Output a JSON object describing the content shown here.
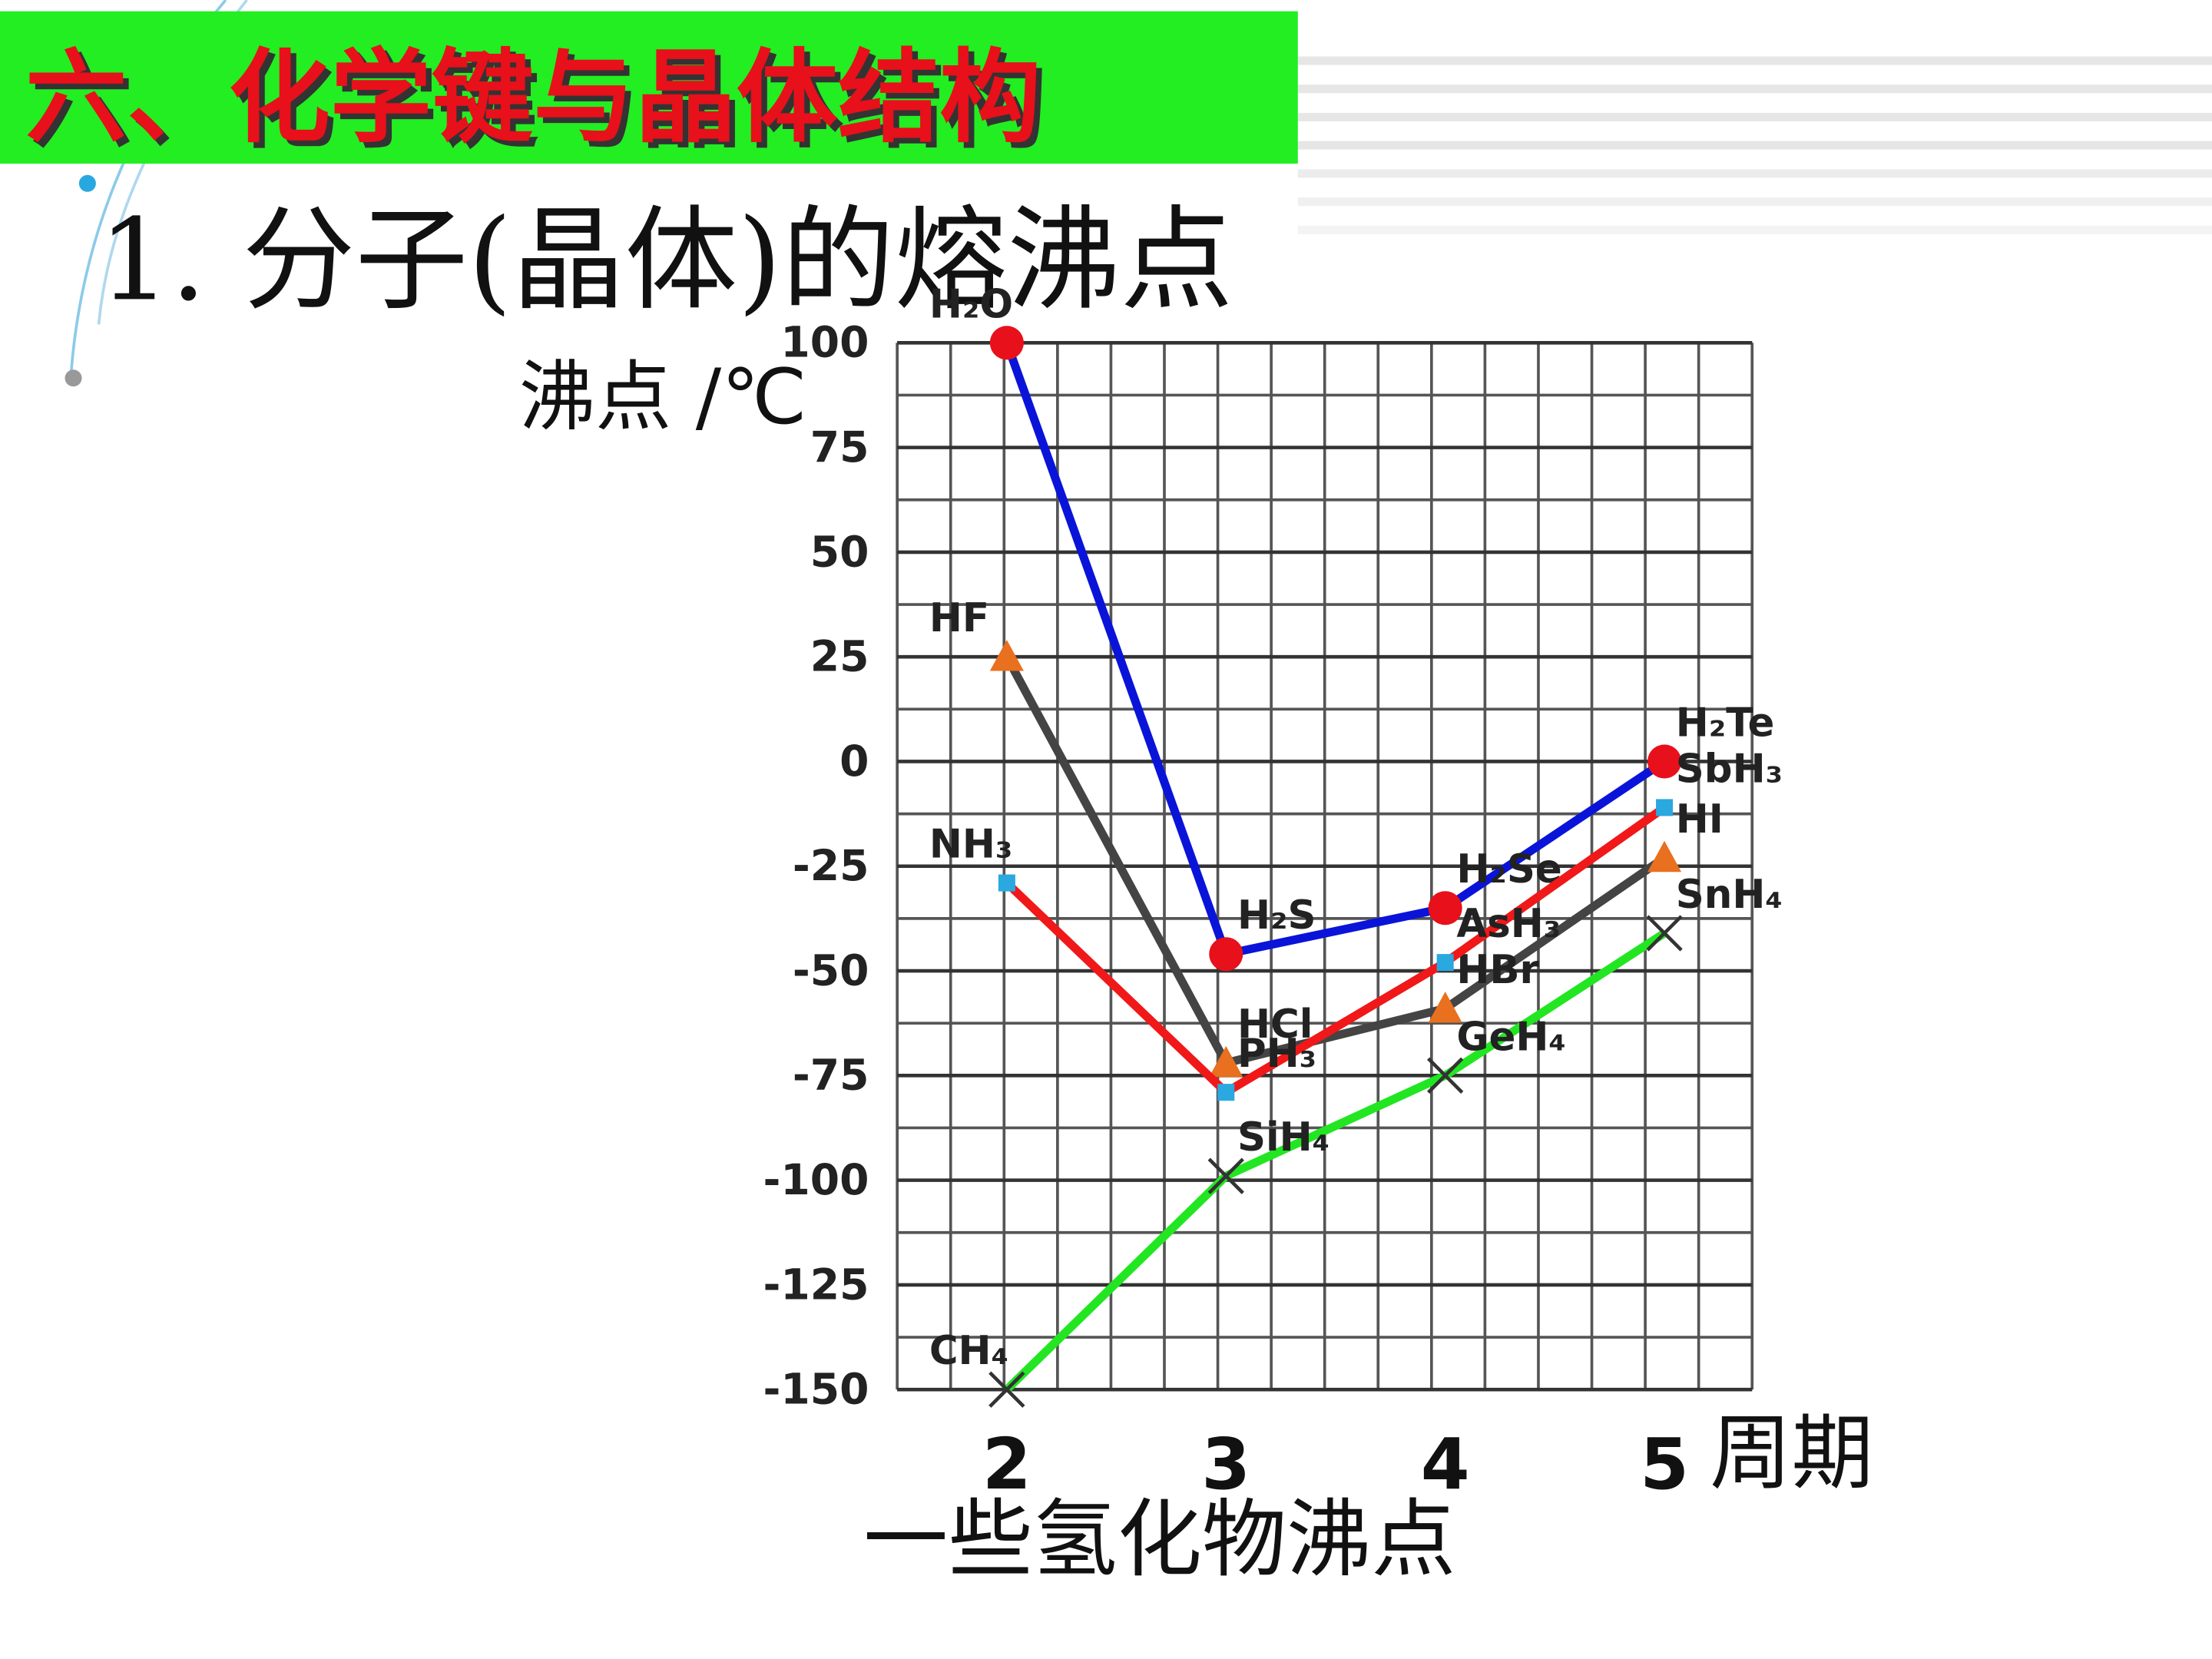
{
  "slide_title": "六、化学键与晶体结构",
  "heading": "1. 分子(晶体)的熔沸点",
  "chart_data": {
    "type": "line",
    "y_label": "沸点 /℃",
    "x_label": "周期",
    "caption": "一些氢化物沸点",
    "x": [
      2,
      3,
      4,
      5
    ],
    "xlim": [
      1.5,
      5.4
    ],
    "xticks": [
      2,
      3,
      4,
      5
    ],
    "ylim": [
      -150,
      100
    ],
    "yticks": [
      100,
      75,
      50,
      25,
      0,
      -25,
      -50,
      -75,
      -100,
      -125,
      -150
    ],
    "grid": true,
    "series": [
      {
        "color": "#0a14d8",
        "marker": "circle",
        "marker_color": "#e8101a",
        "values": [
          100,
          -46,
          -35,
          0
        ],
        "point_labels": [
          "H₂O",
          "H₂S",
          "H₂Se",
          "H₂Te"
        ]
      },
      {
        "color": "#444444",
        "marker": "triangle",
        "marker_color": "#e8701e",
        "values": [
          25,
          -72,
          -59,
          -23
        ],
        "point_labels": [
          "HF",
          "HCl",
          "HBr",
          "HI"
        ]
      },
      {
        "color": "#f01818",
        "marker": "square",
        "marker_color": "#2aa8e0",
        "values": [
          -29,
          -79,
          -48,
          -11
        ],
        "point_labels": [
          "NH₃",
          "PH₃",
          "AsH₃",
          "SbH₃"
        ]
      },
      {
        "color": "#22e622",
        "marker": "cross",
        "marker_color": "#333333",
        "values": [
          -150,
          -99,
          -75,
          -41
        ],
        "point_labels": [
          "CH₄",
          "SiH₄",
          "GeH₄",
          "SnH₄"
        ]
      }
    ]
  }
}
